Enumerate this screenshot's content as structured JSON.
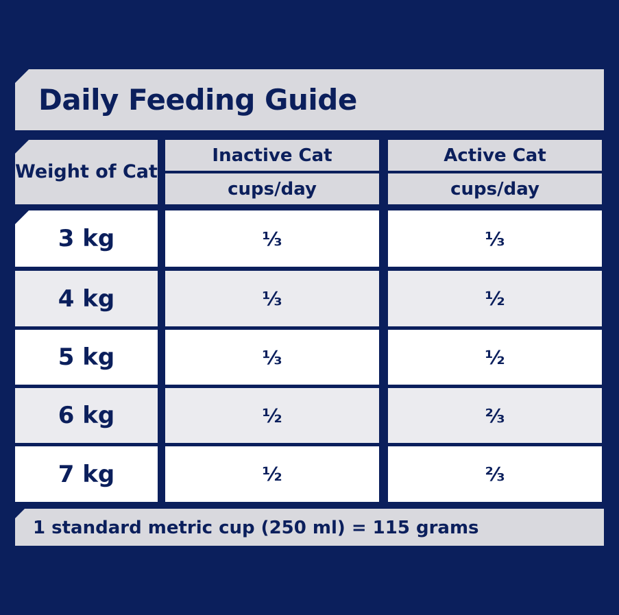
{
  "title": "Daily Feeding Guide",
  "table": {
    "weight_header": "Weight of Cat",
    "columns": [
      {
        "name": "Inactive Cat",
        "unit": "cups/day"
      },
      {
        "name": "Active Cat",
        "unit": "cups/day"
      }
    ],
    "rows": [
      {
        "weight": "3 kg",
        "inactive": "⅓",
        "active": "⅓"
      },
      {
        "weight": "4 kg",
        "inactive": "⅓",
        "active": "½"
      },
      {
        "weight": "5 kg",
        "inactive": "⅓",
        "active": "½"
      },
      {
        "weight": "6 kg",
        "inactive": "½",
        "active": "⅔"
      },
      {
        "weight": "7 kg",
        "inactive": "½",
        "active": "⅔"
      }
    ]
  },
  "footer": "1 standard metric cup (250 ml) =  115 grams",
  "colors": {
    "background": "#0b1f5c",
    "header": "#d9d9de",
    "row_white": "#ffffff",
    "row_grey": "#ebebef",
    "text": "#0b1f5c"
  }
}
